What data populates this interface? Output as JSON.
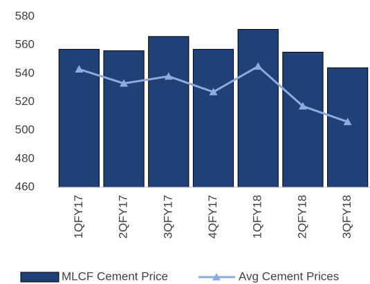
{
  "chart_data": {
    "type": "bar",
    "categories": [
      "1QFY17",
      "2QFY17",
      "3QFY17",
      "4QFY17",
      "1QFY18",
      "2QFY18",
      "3QFY18"
    ],
    "series": [
      {
        "name": "MLCF Cement Price",
        "type": "bar",
        "color": "#1f4178",
        "values": [
          557,
          556,
          566,
          557,
          571,
          555,
          544
        ]
      },
      {
        "name": "Avg Cement Prices",
        "type": "line",
        "color": "#8faadc",
        "values": [
          543,
          533,
          538,
          527,
          545,
          517,
          506
        ]
      }
    ],
    "ylim": [
      460,
      580
    ],
    "yticks": [
      460,
      480,
      500,
      520,
      540,
      560,
      580
    ],
    "grid": false,
    "legend": "bottom"
  }
}
